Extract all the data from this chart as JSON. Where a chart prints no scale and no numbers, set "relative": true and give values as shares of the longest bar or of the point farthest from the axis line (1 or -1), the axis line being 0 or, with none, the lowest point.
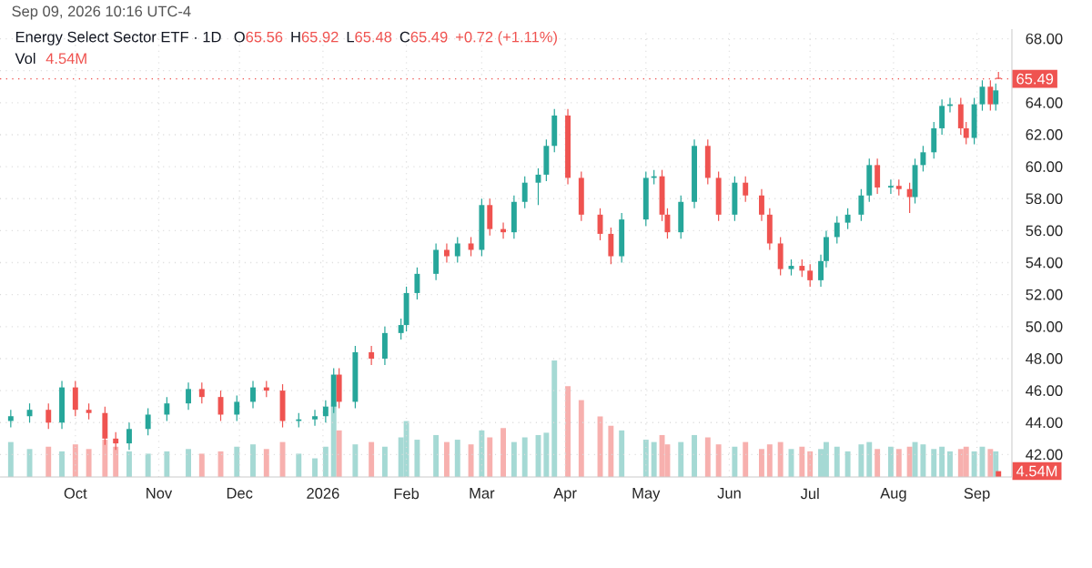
{
  "chart_data": [
    {
      "type": "candlestick",
      "title": "Energy Select Sector ETF · 1D",
      "annotations": [
        "Sep 09, 2026 10:16 UTC-4",
        "O",
        "65.56",
        "H",
        "65.92",
        "L",
        "65.48",
        "C",
        "65.49",
        "+0.72 (+1.11%)",
        "Vol",
        "4.54M"
      ],
      "x": [
        "2025-09-07",
        "2025-09-14",
        "2025-09-21",
        "2025-09-26",
        "2025-10-01",
        "2025-10-06",
        "2025-10-12",
        "2025-10-16",
        "2025-10-21",
        "2025-10-28",
        "2025-11-04",
        "2025-11-12",
        "2025-11-17",
        "2025-11-24",
        "2025-11-30",
        "2025-12-06",
        "2025-12-11",
        "2025-12-17",
        "2025-12-23",
        "2025-12-29",
        "2026-01-02",
        "2026-01-05",
        "2026-01-07",
        "2026-01-13",
        "2026-01-19",
        "2026-01-24",
        "2026-01-30",
        "2026-02-01",
        "2026-02-05",
        "2026-02-12",
        "2026-02-16",
        "2026-02-20",
        "2026-02-25",
        "2026-03-01",
        "2026-03-04",
        "2026-03-09",
        "2026-03-13",
        "2026-03-17",
        "2026-03-22",
        "2026-03-25",
        "2026-03-28",
        "2026-04-02",
        "2026-04-07",
        "2026-04-14",
        "2026-04-18",
        "2026-04-22",
        "2026-05-01",
        "2026-05-04",
        "2026-05-07",
        "2026-05-09",
        "2026-05-14",
        "2026-05-19",
        "2026-05-24",
        "2026-05-28",
        "2026-06-03",
        "2026-06-07",
        "2026-06-13",
        "2026-06-16",
        "2026-06-20",
        "2026-06-24",
        "2026-06-28",
        "2026-07-01",
        "2026-07-05",
        "2026-07-07",
        "2026-07-11",
        "2026-07-15",
        "2026-07-20",
        "2026-07-23",
        "2026-07-26",
        "2026-07-31",
        "2026-08-03",
        "2026-08-07",
        "2026-08-09",
        "2026-08-12",
        "2026-08-16",
        "2026-08-19",
        "2026-08-22",
        "2026-08-26",
        "2026-08-28",
        "2026-08-31",
        "2026-09-03",
        "2026-09-06",
        "2026-09-08",
        "2026-09-09"
      ],
      "ohlc": [
        [
          44.1,
          44.8,
          43.7,
          44.4
        ],
        [
          44.4,
          45.2,
          44.0,
          44.8
        ],
        [
          44.8,
          45.2,
          43.6,
          44.0
        ],
        [
          44.0,
          46.6,
          43.6,
          46.2
        ],
        [
          46.2,
          46.6,
          44.4,
          44.8
        ],
        [
          44.8,
          45.2,
          44.2,
          44.6
        ],
        [
          44.6,
          45.0,
          42.6,
          43.0
        ],
        [
          43.0,
          43.4,
          42.3,
          42.7
        ],
        [
          42.7,
          44.0,
          42.3,
          43.6
        ],
        [
          43.6,
          44.9,
          43.2,
          44.5
        ],
        [
          44.5,
          45.6,
          44.1,
          45.2
        ],
        [
          45.2,
          46.5,
          44.8,
          46.1
        ],
        [
          46.1,
          46.5,
          45.2,
          45.6
        ],
        [
          45.6,
          46.0,
          44.1,
          44.5
        ],
        [
          44.5,
          45.7,
          44.1,
          45.3
        ],
        [
          45.3,
          46.6,
          44.9,
          46.2
        ],
        [
          46.2,
          46.6,
          45.6,
          46.0
        ],
        [
          46.0,
          46.4,
          43.7,
          44.1
        ],
        [
          44.1,
          44.6,
          43.7,
          44.2
        ],
        [
          44.2,
          44.8,
          43.8,
          44.4
        ],
        [
          44.4,
          45.4,
          44.0,
          45.0
        ],
        [
          45.0,
          47.4,
          44.6,
          47.0
        ],
        [
          47.0,
          47.4,
          44.9,
          45.3
        ],
        [
          45.3,
          48.8,
          44.9,
          48.4
        ],
        [
          48.4,
          48.8,
          47.6,
          48.0
        ],
        [
          48.0,
          50.0,
          47.6,
          49.6
        ],
        [
          49.6,
          50.5,
          49.2,
          50.1
        ],
        [
          50.1,
          52.5,
          49.7,
          52.1
        ],
        [
          52.1,
          53.7,
          51.7,
          53.3
        ],
        [
          53.3,
          55.2,
          52.9,
          54.8
        ],
        [
          54.8,
          55.2,
          54.0,
          54.4
        ],
        [
          54.4,
          55.6,
          54.0,
          55.2
        ],
        [
          55.2,
          55.6,
          54.4,
          54.8
        ],
        [
          54.8,
          58.0,
          54.4,
          57.6
        ],
        [
          57.6,
          58.0,
          55.7,
          56.1
        ],
        [
          56.1,
          56.5,
          55.5,
          55.9
        ],
        [
          55.9,
          58.2,
          55.5,
          57.8
        ],
        [
          57.8,
          59.4,
          57.4,
          59.0
        ],
        [
          59.0,
          59.9,
          57.6,
          59.5
        ],
        [
          59.5,
          61.7,
          59.1,
          61.3
        ],
        [
          61.3,
          63.6,
          60.9,
          63.2
        ],
        [
          63.2,
          63.6,
          58.9,
          59.3
        ],
        [
          59.3,
          59.7,
          56.6,
          57.0
        ],
        [
          57.0,
          57.4,
          55.4,
          55.8
        ],
        [
          55.8,
          56.2,
          53.9,
          54.4
        ],
        [
          54.4,
          57.1,
          54.0,
          56.7
        ],
        [
          56.7,
          59.7,
          56.3,
          59.3
        ],
        [
          59.3,
          59.8,
          58.9,
          59.4
        ],
        [
          59.4,
          59.8,
          56.6,
          57.0
        ],
        [
          57.0,
          57.4,
          55.5,
          55.9
        ],
        [
          55.9,
          58.2,
          55.5,
          57.8
        ],
        [
          57.8,
          61.7,
          57.4,
          61.3
        ],
        [
          61.3,
          61.7,
          58.9,
          59.3
        ],
        [
          59.3,
          59.7,
          56.6,
          57.0
        ],
        [
          57.0,
          59.4,
          56.6,
          59.0
        ],
        [
          59.0,
          59.4,
          57.8,
          58.2
        ],
        [
          58.2,
          58.6,
          56.6,
          57.0
        ],
        [
          57.0,
          57.4,
          54.8,
          55.2
        ],
        [
          55.2,
          55.6,
          53.2,
          53.6
        ],
        [
          53.6,
          54.2,
          53.2,
          53.8
        ],
        [
          53.8,
          54.2,
          53.1,
          53.5
        ],
        [
          53.5,
          53.9,
          52.5,
          52.9
        ],
        [
          52.9,
          54.5,
          52.5,
          54.1
        ],
        [
          54.1,
          56.0,
          53.7,
          55.6
        ],
        [
          55.6,
          56.9,
          55.2,
          56.5
        ],
        [
          56.5,
          57.4,
          56.1,
          57.0
        ],
        [
          57.0,
          58.6,
          56.6,
          58.2
        ],
        [
          58.2,
          60.5,
          57.8,
          60.1
        ],
        [
          60.1,
          60.5,
          58.3,
          58.7
        ],
        [
          58.7,
          59.2,
          58.3,
          58.8
        ],
        [
          58.8,
          59.2,
          58.2,
          58.6
        ],
        [
          58.6,
          59.0,
          57.1,
          58.1
        ],
        [
          58.1,
          60.5,
          57.7,
          60.1
        ],
        [
          60.1,
          61.3,
          59.7,
          60.9
        ],
        [
          60.9,
          62.8,
          60.5,
          62.4
        ],
        [
          62.4,
          64.2,
          62.0,
          63.8
        ],
        [
          63.8,
          64.3,
          63.4,
          63.9
        ],
        [
          63.9,
          64.3,
          62.0,
          62.4
        ],
        [
          62.4,
          62.8,
          61.4,
          61.8
        ],
        [
          61.8,
          64.3,
          61.4,
          63.9
        ],
        [
          63.9,
          65.4,
          63.5,
          65.0
        ],
        [
          65.0,
          65.4,
          63.5,
          63.9
        ],
        [
          63.9,
          65.2,
          63.5,
          64.77
        ],
        [
          65.56,
          65.92,
          65.48,
          65.49
        ]
      ],
      "colors": [
        "#26a69a",
        "#26a69a",
        "#ef5350",
        "#26a69a",
        "#ef5350",
        "#ef5350",
        "#ef5350",
        "#ef5350",
        "#26a69a",
        "#26a69a",
        "#26a69a",
        "#26a69a",
        "#ef5350",
        "#ef5350",
        "#26a69a",
        "#26a69a",
        "#ef5350",
        "#ef5350",
        "#26a69a",
        "#26a69a",
        "#26a69a",
        "#26a69a",
        "#ef5350",
        "#26a69a",
        "#ef5350",
        "#26a69a",
        "#26a69a",
        "#26a69a",
        "#26a69a",
        "#26a69a",
        "#ef5350",
        "#26a69a",
        "#ef5350",
        "#26a69a",
        "#ef5350",
        "#ef5350",
        "#26a69a",
        "#26a69a",
        "#26a69a",
        "#26a69a",
        "#26a69a",
        "#ef5350",
        "#ef5350",
        "#ef5350",
        "#ef5350",
        "#26a69a",
        "#26a69a",
        "#26a69a",
        "#ef5350",
        "#ef5350",
        "#26a69a",
        "#26a69a",
        "#ef5350",
        "#ef5350",
        "#26a69a",
        "#ef5350",
        "#ef5350",
        "#ef5350",
        "#ef5350",
        "#26a69a",
        "#ef5350",
        "#ef5350",
        "#26a69a",
        "#26a69a",
        "#26a69a",
        "#26a69a",
        "#26a69a",
        "#26a69a",
        "#ef5350",
        "#26a69a",
        "#ef5350",
        "#ef5350",
        "#26a69a",
        "#26a69a",
        "#26a69a",
        "#26a69a",
        "#26a69a",
        "#ef5350",
        "#ef5350",
        "#26a69a",
        "#26a69a",
        "#ef5350",
        "#26a69a",
        "#ef5350"
      ],
      "xlim": [
        "2025-09-03",
        "2026-09-14"
      ],
      "xticks": [
        {
          "value": "2025-10-01",
          "label": "Oct"
        },
        {
          "value": "2025-11-01",
          "label": "Nov"
        },
        {
          "value": "2025-12-01",
          "label": "Dec"
        },
        {
          "value": "2026-01-01",
          "label": "2026"
        },
        {
          "value": "2026-02-01",
          "label": "Feb"
        },
        {
          "value": "2026-03-01",
          "label": "Mar"
        },
        {
          "value": "2026-04-01",
          "label": "Apr"
        },
        {
          "value": "2026-05-01",
          "label": "May"
        },
        {
          "value": "2026-06-01",
          "label": "Jun"
        },
        {
          "value": "2026-07-01",
          "label": "Jul"
        },
        {
          "value": "2026-08-01",
          "label": "Aug"
        },
        {
          "value": "2026-09-01",
          "label": "Sep"
        }
      ],
      "ylim": [
        40.6,
        68.6
      ],
      "yticks": [
        {
          "value": 42,
          "label": "42.00"
        },
        {
          "value": 44,
          "label": "44.00"
        },
        {
          "value": 46,
          "label": "46.00"
        },
        {
          "value": 48,
          "label": "48.00"
        },
        {
          "value": 50,
          "label": "50.00"
        },
        {
          "value": 52,
          "label": "52.00"
        },
        {
          "value": 54,
          "label": "54.00"
        },
        {
          "value": 56,
          "label": "56.00"
        },
        {
          "value": 58,
          "label": "58.00"
        },
        {
          "value": 60,
          "label": "60.00"
        },
        {
          "value": 62,
          "label": "62.00"
        },
        {
          "value": 64,
          "label": "64.00"
        },
        {
          "value": 66,
          "label": null
        },
        {
          "value": 68,
          "label": "68.00"
        }
      ],
      "ref_lines": [
        {
          "axis": "y",
          "value": 65.49,
          "label": "65.49",
          "color": "#ef5350",
          "line_style": "dotted"
        }
      ],
      "grid": true
    },
    {
      "type": "bar",
      "relative": true,
      "tick_labels": false,
      "annotations": [
        "4.54M"
      ],
      "x": [
        "2025-09-07",
        "2025-09-14",
        "2025-09-21",
        "2025-09-26",
        "2025-10-01",
        "2025-10-06",
        "2025-10-12",
        "2025-10-16",
        "2025-10-21",
        "2025-10-28",
        "2025-11-04",
        "2025-11-12",
        "2025-11-17",
        "2025-11-24",
        "2025-11-30",
        "2025-12-06",
        "2025-12-11",
        "2025-12-17",
        "2025-12-23",
        "2025-12-29",
        "2026-01-02",
        "2026-01-05",
        "2026-01-07",
        "2026-01-13",
        "2026-01-19",
        "2026-01-24",
        "2026-01-30",
        "2026-02-01",
        "2026-02-05",
        "2026-02-12",
        "2026-02-16",
        "2026-02-20",
        "2026-02-25",
        "2026-03-01",
        "2026-03-04",
        "2026-03-09",
        "2026-03-13",
        "2026-03-17",
        "2026-03-22",
        "2026-03-25",
        "2026-03-28",
        "2026-04-02",
        "2026-04-07",
        "2026-04-14",
        "2026-04-18",
        "2026-04-22",
        "2026-05-01",
        "2026-05-04",
        "2026-05-07",
        "2026-05-09",
        "2026-05-14",
        "2026-05-19",
        "2026-05-24",
        "2026-05-28",
        "2026-06-03",
        "2026-06-07",
        "2026-06-13",
        "2026-06-16",
        "2026-06-20",
        "2026-06-24",
        "2026-06-28",
        "2026-07-01",
        "2026-07-05",
        "2026-07-07",
        "2026-07-11",
        "2026-07-15",
        "2026-07-20",
        "2026-07-23",
        "2026-07-26",
        "2026-07-31",
        "2026-08-03",
        "2026-08-07",
        "2026-08-09",
        "2026-08-12",
        "2026-08-16",
        "2026-08-19",
        "2026-08-22",
        "2026-08-26",
        "2026-08-28",
        "2026-08-31",
        "2026-09-03",
        "2026-09-06",
        "2026-09-08",
        "2026-09-09"
      ],
      "xlim": [
        "2025-09-03",
        "2026-09-14"
      ],
      "values": [
        0.3,
        0.24,
        0.26,
        0.22,
        0.28,
        0.24,
        0.32,
        0.26,
        0.22,
        0.2,
        0.22,
        0.24,
        0.2,
        0.22,
        0.26,
        0.28,
        0.24,
        0.3,
        0.2,
        0.16,
        0.26,
        0.62,
        0.4,
        0.28,
        0.3,
        0.26,
        0.34,
        0.48,
        0.32,
        0.36,
        0.3,
        0.32,
        0.28,
        0.4,
        0.34,
        0.42,
        0.3,
        0.34,
        0.36,
        0.38,
        1,
        0.78,
        0.66,
        0.52,
        0.44,
        0.4,
        0.32,
        0.3,
        0.36,
        0.28,
        0.3,
        0.36,
        0.34,
        0.28,
        0.26,
        0.3,
        0.24,
        0.28,
        0.3,
        0.24,
        0.26,
        0.22,
        0.24,
        0.3,
        0.26,
        0.22,
        0.28,
        0.3,
        0.24,
        0.26,
        0.24,
        0.26,
        0.3,
        0.28,
        0.24,
        0.26,
        0.22,
        0.24,
        0.26,
        0.22,
        0.26,
        0.24,
        0.22,
        0.05
      ],
      "colors": [
        "#a5d9d4",
        "#a5d9d4",
        "#f7b0ae",
        "#a5d9d4",
        "#f7b0ae",
        "#f7b0ae",
        "#f7b0ae",
        "#f7b0ae",
        "#a5d9d4",
        "#a5d9d4",
        "#a5d9d4",
        "#a5d9d4",
        "#f7b0ae",
        "#f7b0ae",
        "#a5d9d4",
        "#a5d9d4",
        "#f7b0ae",
        "#f7b0ae",
        "#a5d9d4",
        "#a5d9d4",
        "#a5d9d4",
        "#a5d9d4",
        "#f7b0ae",
        "#a5d9d4",
        "#f7b0ae",
        "#a5d9d4",
        "#a5d9d4",
        "#a5d9d4",
        "#a5d9d4",
        "#a5d9d4",
        "#f7b0ae",
        "#a5d9d4",
        "#f7b0ae",
        "#a5d9d4",
        "#f7b0ae",
        "#f7b0ae",
        "#a5d9d4",
        "#a5d9d4",
        "#a5d9d4",
        "#a5d9d4",
        "#a5d9d4",
        "#f7b0ae",
        "#f7b0ae",
        "#f7b0ae",
        "#f7b0ae",
        "#a5d9d4",
        "#a5d9d4",
        "#a5d9d4",
        "#f7b0ae",
        "#f7b0ae",
        "#a5d9d4",
        "#a5d9d4",
        "#f7b0ae",
        "#f7b0ae",
        "#a5d9d4",
        "#f7b0ae",
        "#f7b0ae",
        "#f7b0ae",
        "#f7b0ae",
        "#a5d9d4",
        "#f7b0ae",
        "#f7b0ae",
        "#a5d9d4",
        "#a5d9d4",
        "#a5d9d4",
        "#a5d9d4",
        "#a5d9d4",
        "#a5d9d4",
        "#f7b0ae",
        "#a5d9d4",
        "#f7b0ae",
        "#f7b0ae",
        "#a5d9d4",
        "#a5d9d4",
        "#a5d9d4",
        "#a5d9d4",
        "#a5d9d4",
        "#f7b0ae",
        "#f7b0ae",
        "#a5d9d4",
        "#a5d9d4",
        "#f7b0ae",
        "#a5d9d4",
        "#ef5350"
      ]
    }
  ]
}
